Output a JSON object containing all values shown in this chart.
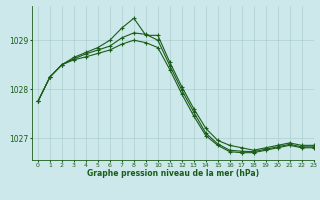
{
  "title": "Graphe pression niveau de la mer (hPa)",
  "bg_color": "#cce8ea",
  "line_color": "#1a5c1a",
  "grid_color": "#a8c8c8",
  "tick_color": "#1a5c1a",
  "xlim": [
    -0.5,
    23
  ],
  "ylim": [
    1026.55,
    1029.7
  ],
  "yticks": [
    1027,
    1028,
    1029
  ],
  "xtick_labels": [
    "0",
    "1",
    "2",
    "3",
    "4",
    "5",
    "6",
    "7",
    "8",
    "9",
    "10",
    "11",
    "12",
    "13",
    "14",
    "15",
    "16",
    "17",
    "18",
    "19",
    "20",
    "21",
    "22",
    "23"
  ],
  "line1_x": [
    0,
    1,
    2,
    3,
    4,
    5,
    6,
    7,
    8,
    9,
    10,
    11,
    12,
    13,
    14,
    15,
    16,
    17,
    18,
    19,
    20,
    21,
    22,
    23
  ],
  "line1_y": [
    1027.75,
    1028.25,
    1028.5,
    1028.65,
    1028.75,
    1028.85,
    1029.0,
    1029.25,
    1029.45,
    1029.1,
    1029.1,
    1028.55,
    1028.05,
    1027.6,
    1027.2,
    1026.95,
    1026.85,
    1026.8,
    1026.75,
    1026.8,
    1026.85,
    1026.9,
    1026.85,
    1026.85
  ],
  "line2_x": [
    0,
    1,
    2,
    3,
    4,
    5,
    6,
    7,
    8,
    9,
    10,
    11,
    12,
    13,
    14,
    15,
    16,
    17,
    18,
    19,
    20,
    21,
    22,
    23
  ],
  "line2_y": [
    1027.75,
    1028.25,
    1028.5,
    1028.62,
    1028.72,
    1028.8,
    1028.88,
    1029.05,
    1029.15,
    1029.12,
    1029.0,
    1028.48,
    1027.98,
    1027.53,
    1027.1,
    1026.88,
    1026.75,
    1026.73,
    1026.72,
    1026.77,
    1026.82,
    1026.87,
    1026.82,
    1026.82
  ],
  "line3_x": [
    0,
    1,
    2,
    3,
    4,
    5,
    6,
    7,
    8,
    9,
    10,
    11,
    12,
    13,
    14,
    15,
    16,
    17,
    18,
    19,
    20,
    21,
    22,
    23
  ],
  "line3_y": [
    1027.75,
    1028.25,
    1028.5,
    1028.6,
    1028.66,
    1028.73,
    1028.8,
    1028.92,
    1029.0,
    1028.95,
    1028.85,
    1028.4,
    1027.9,
    1027.45,
    1027.05,
    1026.85,
    1026.72,
    1026.7,
    1026.7,
    1026.75,
    1026.8,
    1026.85,
    1026.8,
    1026.8
  ]
}
